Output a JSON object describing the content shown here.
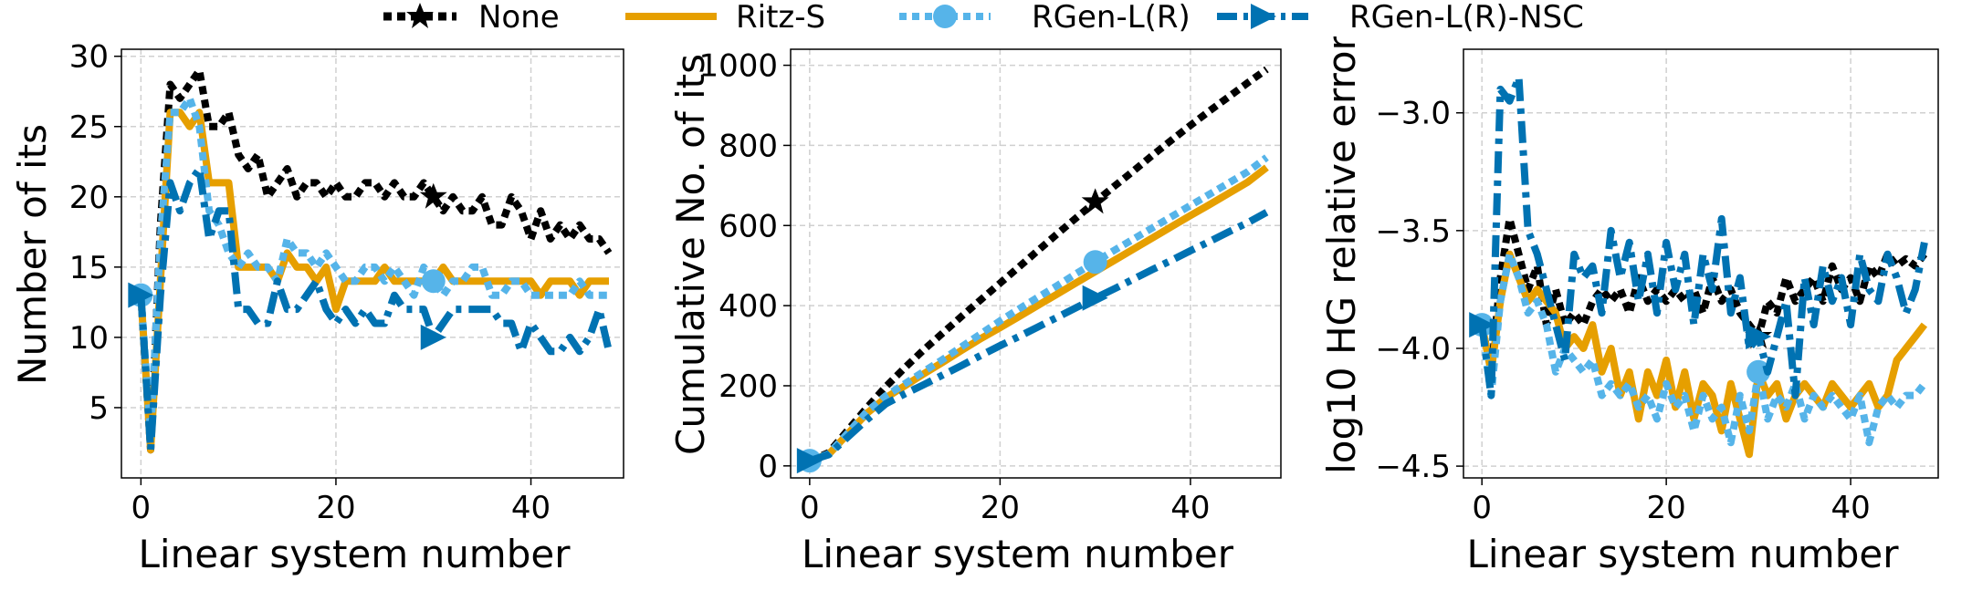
{
  "legend": [
    {
      "name": "None",
      "color": "#000000",
      "dash": "dotted",
      "marker": "star"
    },
    {
      "name": "Ritz-S",
      "color": "#E69F00",
      "dash": "solid",
      "marker": "none"
    },
    {
      "name": "RGen-L(R)",
      "color": "#56B4E9",
      "dash": "dotted",
      "marker": "circle"
    },
    {
      "name": "RGen-L(R)-NSC",
      "color": "#0072B2",
      "dash": "dashdot",
      "marker": "triangle-right"
    }
  ],
  "chart_data": [
    {
      "type": "line",
      "xlabel": "Linear system number",
      "ylabel": "Number of its",
      "xlim": [
        -2,
        49.5
      ],
      "ylim": [
        0,
        30.5
      ],
      "xticks": [
        0,
        20,
        40
      ],
      "yticks": [
        5,
        10,
        15,
        20,
        25,
        30
      ],
      "grid": true,
      "marker_x": 30,
      "x": [
        0,
        1,
        2,
        3,
        4,
        5,
        6,
        7,
        8,
        9,
        10,
        11,
        12,
        13,
        14,
        15,
        16,
        17,
        18,
        19,
        20,
        21,
        22,
        23,
        24,
        25,
        26,
        27,
        28,
        29,
        30,
        31,
        32,
        33,
        34,
        35,
        36,
        37,
        38,
        39,
        40,
        41,
        42,
        43,
        44,
        45,
        46,
        47,
        48
      ],
      "series": [
        {
          "name": "None",
          "values": [
            13,
            2,
            18,
            28,
            27,
            28,
            29,
            25,
            25,
            26,
            23,
            22,
            23,
            20,
            21,
            22,
            20,
            21,
            21,
            20,
            21,
            20,
            20,
            21,
            21,
            20,
            21,
            20,
            20,
            21,
            20,
            19,
            20,
            19,
            19,
            20,
            18,
            18,
            20,
            19,
            17,
            19,
            17,
            18,
            17,
            18,
            17,
            17,
            16
          ]
        },
        {
          "name": "Ritz-S",
          "values": [
            13,
            2,
            14,
            26,
            26,
            25,
            26,
            21,
            21,
            21,
            15,
            15,
            15,
            15,
            14,
            16,
            15,
            15,
            14,
            15,
            12,
            14,
            14,
            14,
            14,
            15,
            14,
            14,
            14,
            14,
            14,
            15,
            14,
            14,
            14,
            14,
            14,
            14,
            14,
            14,
            14,
            13,
            14,
            14,
            14,
            13,
            14,
            14,
            14
          ]
        },
        {
          "name": "RGen-L(R)",
          "values": [
            13,
            3,
            17,
            26,
            26,
            27,
            25,
            19,
            18,
            16,
            15,
            16,
            15,
            15,
            14,
            17,
            16,
            16,
            15,
            16,
            15,
            14,
            14,
            15,
            15,
            14,
            15,
            14,
            13,
            15,
            14,
            13,
            14,
            14,
            15,
            15,
            13,
            13,
            14,
            14,
            13,
            13,
            13,
            13,
            13,
            14,
            13,
            13,
            13
          ]
        },
        {
          "name": "RGen-L(R)-NSC",
          "values": [
            13,
            2,
            13,
            21,
            19,
            21,
            22,
            17,
            19,
            19,
            12,
            12,
            11,
            11,
            14,
            12,
            12,
            13,
            14,
            12,
            11,
            12,
            11,
            12,
            11,
            11,
            13,
            12,
            12,
            12,
            10,
            11,
            12,
            12,
            12,
            12,
            12,
            11,
            11,
            9,
            11,
            10,
            9,
            9,
            10,
            9,
            10,
            12,
            9
          ]
        }
      ]
    },
    {
      "type": "line",
      "xlabel": "Linear system number",
      "ylabel": "Cumulative No. of its",
      "xlim": [
        -2,
        49.5
      ],
      "ylim": [
        -30,
        1040
      ],
      "xticks": [
        0,
        20,
        40
      ],
      "yticks": [
        0,
        200,
        400,
        600,
        800,
        1000
      ],
      "grid": true,
      "marker_x": 30,
      "x": [
        0,
        2,
        4,
        6,
        8,
        10,
        12,
        14,
        16,
        18,
        20,
        22,
        24,
        26,
        28,
        30,
        32,
        34,
        36,
        38,
        40,
        42,
        44,
        46,
        48
      ],
      "series": [
        {
          "name": "None",
          "values": [
            13,
            33,
            89,
            145,
            198,
            245,
            290,
            332,
            374,
            415,
            456,
            497,
            538,
            579,
            619,
            659,
            698,
            736,
            775,
            813,
            850,
            886,
            921,
            956,
            990
          ]
        },
        {
          "name": "Ritz-S",
          "values": [
            13,
            29,
            80,
            131,
            170,
            200,
            230,
            259,
            289,
            318,
            345,
            373,
            401,
            429,
            457,
            485,
            513,
            541,
            569,
            597,
            625,
            652,
            680,
            708,
            745
          ]
        },
        {
          "name": "RGen-L(R)",
          "values": [
            13,
            30,
            82,
            135,
            175,
            205,
            236,
            266,
            298,
            330,
            362,
            392,
            421,
            450,
            480,
            509,
            538,
            566,
            594,
            622,
            650,
            678,
            706,
            734,
            770
          ]
        },
        {
          "name": "RGen-L(R)-NSC",
          "values": [
            13,
            28,
            72,
            115,
            155,
            180,
            203,
            227,
            251,
            276,
            300,
            323,
            347,
            371,
            395,
            419,
            442,
            466,
            490,
            513,
            537,
            560,
            584,
            607,
            633
          ]
        }
      ]
    },
    {
      "type": "line",
      "xlabel": "Linear system number",
      "ylabel": "log10 HG relative error",
      "xlim": [
        -2,
        49.5
      ],
      "ylim": [
        -4.55,
        -2.73
      ],
      "xticks": [
        0,
        20,
        40
      ],
      "yticks": [
        -4.5,
        -4.0,
        -3.5,
        -3.0
      ],
      "ytick_labels": [
        "−4.5",
        "−4.0",
        "−3.5",
        "−3.0"
      ],
      "grid": true,
      "marker_x": 30,
      "x": [
        0,
        1,
        2,
        3,
        4,
        5,
        6,
        7,
        8,
        9,
        10,
        11,
        12,
        13,
        14,
        15,
        16,
        17,
        18,
        19,
        20,
        21,
        22,
        23,
        24,
        25,
        26,
        27,
        28,
        29,
        30,
        31,
        32,
        33,
        34,
        35,
        36,
        37,
        38,
        39,
        40,
        41,
        42,
        43,
        44,
        45,
        46,
        47,
        48
      ],
      "series": [
        {
          "name": "None",
          "values": [
            -3.9,
            -4.1,
            -3.7,
            -3.45,
            -3.6,
            -3.75,
            -3.65,
            -3.9,
            -3.75,
            -3.9,
            -3.85,
            -3.9,
            -3.8,
            -3.75,
            -3.8,
            -3.75,
            -3.85,
            -3.7,
            -3.8,
            -3.75,
            -3.8,
            -3.75,
            -3.8,
            -3.75,
            -3.85,
            -3.7,
            -3.8,
            -3.75,
            -3.85,
            -3.9,
            -3.95,
            -3.8,
            -3.85,
            -3.7,
            -3.8,
            -3.75,
            -3.7,
            -3.8,
            -3.65,
            -3.75,
            -3.7,
            -3.8,
            -3.65,
            -3.7,
            -3.6,
            -3.65,
            -3.62,
            -3.65,
            -3.6
          ]
        },
        {
          "name": "Ritz-S",
          "values": [
            -3.9,
            -4.1,
            -3.8,
            -3.6,
            -3.7,
            -3.8,
            -3.75,
            -3.8,
            -3.85,
            -4.0,
            -3.95,
            -4.0,
            -3.9,
            -4.1,
            -4.0,
            -4.2,
            -4.1,
            -4.3,
            -4.1,
            -4.2,
            -4.05,
            -4.25,
            -4.1,
            -4.3,
            -4.15,
            -4.2,
            -4.35,
            -4.15,
            -4.3,
            -4.45,
            -4.1,
            -4.2,
            -4.15,
            -4.3,
            -4.2,
            -4.15,
            -4.2,
            -4.25,
            -4.15,
            -4.2,
            -4.25,
            -4.2,
            -4.15,
            -4.25,
            -4.2,
            -4.05,
            -4.0,
            -3.95,
            -3.9
          ]
        },
        {
          "name": "RGen-L(R)",
          "values": [
            -3.9,
            -4.2,
            -3.8,
            -3.6,
            -3.7,
            -3.85,
            -3.8,
            -3.9,
            -4.1,
            -4.0,
            -4.05,
            -4.1,
            -4.05,
            -4.2,
            -4.15,
            -4.2,
            -4.15,
            -4.25,
            -4.2,
            -4.3,
            -4.15,
            -4.25,
            -4.2,
            -4.35,
            -4.2,
            -4.3,
            -4.25,
            -4.4,
            -4.2,
            -4.35,
            -4.1,
            -4.3,
            -4.2,
            -4.25,
            -4.15,
            -4.3,
            -4.2,
            -4.25,
            -4.2,
            -4.25,
            -4.3,
            -4.2,
            -4.4,
            -4.25,
            -4.2,
            -4.25,
            -4.2,
            -4.2,
            -4.15
          ]
        },
        {
          "name": "RGen-L(R)-NSC",
          "values": [
            -3.9,
            -4.2,
            -2.9,
            -2.95,
            -2.85,
            -3.5,
            -3.6,
            -3.75,
            -3.9,
            -4.05,
            -3.6,
            -3.7,
            -3.65,
            -3.85,
            -3.5,
            -3.7,
            -3.55,
            -3.8,
            -3.6,
            -3.85,
            -3.55,
            -3.75,
            -3.6,
            -3.9,
            -3.6,
            -3.75,
            -3.45,
            -3.85,
            -3.7,
            -4.0,
            -3.95,
            -4.1,
            -3.95,
            -3.8,
            -4.2,
            -3.7,
            -3.9,
            -3.65,
            -3.8,
            -3.7,
            -3.9,
            -3.6,
            -3.75,
            -3.8,
            -3.6,
            -3.7,
            -3.85,
            -3.75,
            -3.55
          ]
        }
      ]
    }
  ]
}
